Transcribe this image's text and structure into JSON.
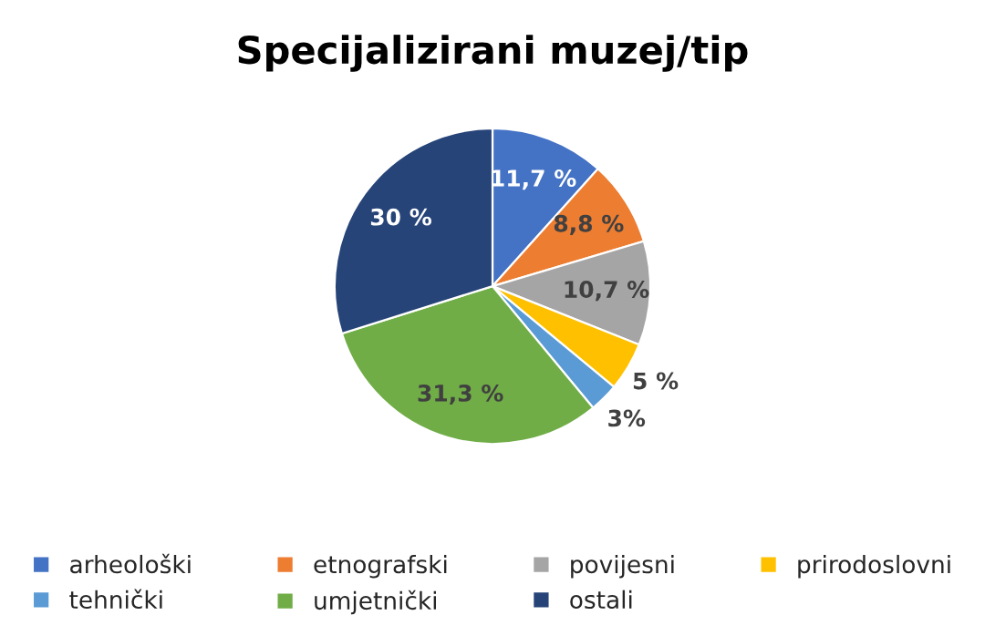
{
  "chart_data": {
    "type": "pie",
    "title": "Specijalizirani muzej/tip",
    "categories": [
      "arheološki",
      "etnografski",
      "povijesni",
      "prirodoslovni",
      "tehnički",
      "umjetnički",
      "ostali"
    ],
    "values": [
      11.7,
      8.8,
      10.7,
      5,
      3,
      31.3,
      30
    ],
    "value_labels": [
      "11,7 %",
      "8,8 %",
      "10,7 %",
      "5 %",
      "3%",
      "31,3 %",
      "30 %"
    ],
    "colors": [
      "#4472c4",
      "#ed7d31",
      "#a5a5a5",
      "#ffc000",
      "#5b9bd5",
      "#70ad47",
      "#264478"
    ],
    "legend": "bottom"
  }
}
